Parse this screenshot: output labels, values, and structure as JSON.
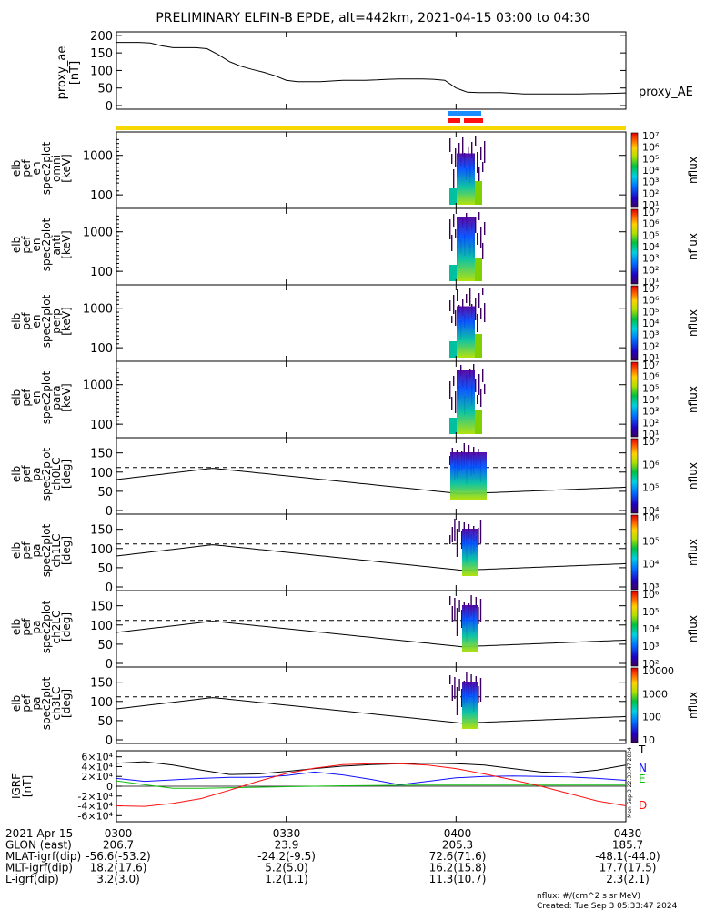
{
  "title": "PRELIMINARY ELFIN-B EPDE, alt=442km, 2021-04-15 03:00 to 04:30",
  "colors": {
    "sun_bar": "#f5d800",
    "blue_bar": "#1a8cff",
    "red_bar": "#ff1010",
    "T": "#000000",
    "N": "#1010ff",
    "E": "#10c010",
    "D": "#ff1010"
  },
  "chart_data": [
    {
      "type": "line",
      "ylabel": [
        "proxy_ae",
        "[nT]"
      ],
      "series_label": "proxy_AE",
      "ylim": [
        0,
        210
      ],
      "yticks": [
        "0",
        "50",
        "100",
        "150",
        "200"
      ],
      "x": [
        0,
        2,
        4,
        6,
        8,
        10,
        12,
        14,
        16,
        18,
        20,
        22,
        24,
        26,
        28,
        30,
        32,
        34,
        36,
        38,
        40,
        42,
        44,
        46,
        48,
        50,
        52,
        54,
        56,
        58,
        60,
        62,
        64,
        66,
        68,
        70,
        72,
        74,
        76,
        78,
        80,
        82,
        84,
        86,
        88,
        90
      ],
      "values": [
        180,
        180,
        180,
        178,
        170,
        165,
        165,
        165,
        162,
        145,
        125,
        112,
        103,
        95,
        85,
        72,
        68,
        68,
        68,
        70,
        72,
        72,
        72,
        73,
        75,
        76,
        76,
        76,
        75,
        72,
        50,
        38,
        37,
        37,
        37,
        35,
        33,
        33,
        33,
        33,
        33,
        33,
        34,
        34,
        35,
        36
      ]
    },
    {
      "type": "heatmap",
      "ylabel": [
        "elb",
        "pef",
        "en",
        "spec2plot",
        "omni",
        "[keV]"
      ],
      "yticks": [
        "100",
        "1000"
      ],
      "cbar_ticks": [
        "10¹",
        "10²",
        "10³",
        "10⁴",
        "10⁵",
        "10⁶",
        "10⁷"
      ],
      "cbar_label": "nflux"
    },
    {
      "type": "heatmap",
      "ylabel": [
        "elb",
        "pef",
        "en",
        "spec2plot",
        "anti",
        "[keV]"
      ],
      "yticks": [
        "100",
        "1000"
      ],
      "cbar_ticks": [
        "10¹",
        "10²",
        "10³",
        "10⁴",
        "10⁵",
        "10⁶",
        "10⁷"
      ],
      "cbar_label": "nflux"
    },
    {
      "type": "heatmap",
      "ylabel": [
        "elb",
        "pef",
        "en",
        "spec2plot",
        "perp",
        "[keV]"
      ],
      "yticks": [
        "100",
        "1000"
      ],
      "cbar_ticks": [
        "10¹",
        "10²",
        "10³",
        "10⁴",
        "10⁵",
        "10⁶",
        "10⁷"
      ],
      "cbar_label": "nflux"
    },
    {
      "type": "heatmap",
      "ylabel": [
        "elb",
        "pef",
        "en",
        "spec2plot",
        "para",
        "[keV]"
      ],
      "yticks": [
        "100",
        "1000"
      ],
      "cbar_ticks": [
        "10¹",
        "10²",
        "10³",
        "10⁴",
        "10⁵",
        "10⁶",
        "10⁷"
      ],
      "cbar_label": "nflux"
    },
    {
      "type": "heatmap",
      "ylabel": [
        "elb",
        "pef",
        "pa",
        "spec2plot",
        "ch0LC",
        "[deg]"
      ],
      "yticks": [
        "0",
        "50",
        "100",
        "150"
      ],
      "cbar_ticks": [
        "10⁴",
        "10⁵",
        "10⁶",
        "10⁷"
      ],
      "cbar_label": "nflux"
    },
    {
      "type": "heatmap",
      "ylabel": [
        "elb",
        "pef",
        "pa",
        "spec2plot",
        "ch1LC",
        "[deg]"
      ],
      "yticks": [
        "0",
        "50",
        "100",
        "150"
      ],
      "cbar_ticks": [
        "10³",
        "10⁴",
        "10⁵",
        "10⁶"
      ],
      "cbar_label": "nflux"
    },
    {
      "type": "heatmap",
      "ylabel": [
        "elb",
        "pef",
        "pa",
        "spec2plot",
        "ch2LC",
        "[deg]"
      ],
      "yticks": [
        "0",
        "50",
        "100",
        "150"
      ],
      "cbar_ticks": [
        "10²",
        "10³",
        "10⁴",
        "10⁵",
        "10⁶"
      ],
      "cbar_label": "nflux"
    },
    {
      "type": "heatmap",
      "ylabel": [
        "elb",
        "pef",
        "pa",
        "spec2plot",
        "ch3LC",
        "[deg]"
      ],
      "yticks": [
        "0",
        "50",
        "100",
        "150"
      ],
      "cbar_ticks": [
        "10",
        "100",
        "1000",
        "10000"
      ],
      "cbar_label": "nflux"
    },
    {
      "type": "line",
      "ylabel": [
        "IGRF",
        "[nT]"
      ],
      "yticks": [
        "-6×10⁴",
        "-4×10⁴",
        "-2×10⁴",
        "0",
        "2×10⁴",
        "4×10⁴",
        "6×10⁴"
      ],
      "ylim": [
        -65000,
        65000
      ],
      "x": [
        0,
        5,
        10,
        15,
        20,
        25,
        30,
        35,
        40,
        45,
        50,
        55,
        60,
        65,
        70,
        75,
        80,
        85,
        90
      ],
      "series": [
        {
          "name": "T",
          "values": [
            47000,
            50000,
            43000,
            33000,
            24000,
            25000,
            30000,
            36000,
            41000,
            44000,
            46000,
            47000,
            46000,
            43000,
            36000,
            29000,
            27000,
            33000,
            43000
          ]
        },
        {
          "name": "N",
          "values": [
            16000,
            10000,
            13000,
            16000,
            18000,
            18000,
            22000,
            29000,
            23000,
            14000,
            3000,
            10000,
            17000,
            20000,
            21000,
            20000,
            19000,
            16000,
            12000
          ]
        },
        {
          "name": "E",
          "values": [
            11000,
            3000,
            -4000,
            -4000,
            -3000,
            -2000,
            -1000,
            0,
            1000,
            1500,
            2000,
            2500,
            2500,
            2500,
            2500,
            2500,
            2500,
            2500,
            2500
          ]
        },
        {
          "name": "D",
          "values": [
            -40000,
            -41000,
            -35000,
            -25000,
            -8000,
            10000,
            26000,
            37000,
            44000,
            46000,
            46000,
            43000,
            36000,
            25000,
            13000,
            0,
            -15000,
            -30000,
            -40000
          ]
        }
      ]
    }
  ],
  "xtick_labels": [
    "0300",
    "0330",
    "0400",
    "0430"
  ],
  "xtick_minutes": [
    0,
    30,
    60,
    90
  ],
  "footer": {
    "rows": [
      {
        "label": "2021 Apr 15",
        "values": [
          "0300",
          "0330",
          "0400",
          "0430"
        ]
      },
      {
        "label": "GLON (east)",
        "values": [
          "206.7",
          "23.9",
          "205.3",
          "185.7"
        ]
      },
      {
        "label": "MLAT-igrf(dip)",
        "values": [
          "-56.6(-53.2)",
          "-24.2(-9.5)",
          "72.6(71.6)",
          "-48.1(-44.0)"
        ]
      },
      {
        "label": "MLT-igrf(dip)",
        "values": [
          "18.2(17.6)",
          "5.2(5.0)",
          "16.2(15.8)",
          "17.7(17.5)"
        ]
      },
      {
        "label": "L-igrf(dip)",
        "values": [
          "3.2(3.0)",
          "1.2(1.1)",
          "11.3(10.7)",
          "2.3(2.1)"
        ]
      }
    ],
    "units_note": "nflux: #/(cm^2 s sr MeV)",
    "created": "Created: Tue Sep  3 05:33:47 2024",
    "side_stamp": "Mon Sep  3 22:33:47 2024"
  }
}
